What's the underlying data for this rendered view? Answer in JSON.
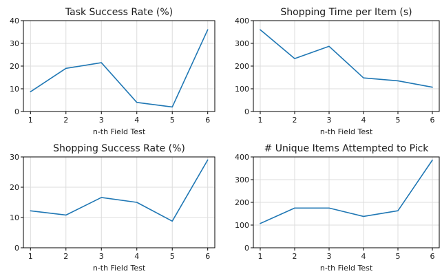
{
  "style": {
    "line_color": "#1f77b4",
    "grid": true
  },
  "chart_data": [
    {
      "type": "line",
      "title": "Task Success Rate (%)",
      "xlabel": "n-th Field Test",
      "ylabel": "",
      "x": [
        1,
        2,
        3,
        4,
        5,
        6
      ],
      "values": [
        8.7,
        19.0,
        21.5,
        4.0,
        2.0,
        36.0
      ],
      "xlim": [
        0.8,
        6.2
      ],
      "ylim": [
        0,
        40
      ],
      "yticks": [
        0,
        10,
        20,
        30,
        40
      ],
      "xticks": [
        1,
        2,
        3,
        4,
        5,
        6
      ]
    },
    {
      "type": "line",
      "title": "Shopping Time per Item (s)",
      "xlabel": "n-th Field Test",
      "ylabel": "",
      "x": [
        1,
        2,
        3,
        4,
        5,
        6
      ],
      "values": [
        360,
        233,
        287,
        148,
        135,
        107
      ],
      "xlim": [
        0.8,
        6.2
      ],
      "ylim": [
        0,
        400
      ],
      "yticks": [
        0,
        100,
        200,
        300,
        400
      ],
      "xticks": [
        1,
        2,
        3,
        4,
        5,
        6
      ]
    },
    {
      "type": "line",
      "title": "Shopping Success Rate (%)",
      "xlabel": "n-th Field Test",
      "ylabel": "",
      "x": [
        1,
        2,
        3,
        4,
        5,
        6
      ],
      "values": [
        12.2,
        10.8,
        16.6,
        15.0,
        8.8,
        29.0
      ],
      "xlim": [
        0.8,
        6.2
      ],
      "ylim": [
        0,
        30
      ],
      "yticks": [
        0,
        10,
        20,
        30
      ],
      "xticks": [
        1,
        2,
        3,
        4,
        5,
        6
      ]
    },
    {
      "type": "line",
      "title": "# Unique Items Attempted to Pick",
      "xlabel": "n-th Field Test",
      "ylabel": "",
      "x": [
        1,
        2,
        3,
        4,
        5,
        6
      ],
      "values": [
        107,
        175,
        175,
        138,
        163,
        386
      ],
      "xlim": [
        0.8,
        6.2
      ],
      "ylim": [
        0,
        400
      ],
      "yticks": [
        0,
        100,
        200,
        300,
        400
      ],
      "xticks": [
        1,
        2,
        3,
        4,
        5,
        6
      ]
    }
  ]
}
